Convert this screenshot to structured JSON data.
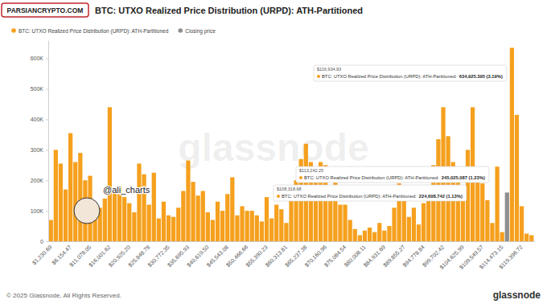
{
  "chart_data": {
    "type": "bar",
    "title": "BTC: UTXO Realized Price Distribution (URPD): ATH-Partitioned",
    "categories": [
      "$1,230.69",
      null,
      null,
      null,
      "$6,154.47",
      null,
      null,
      null,
      "$11,078.05",
      null,
      null,
      null,
      "$16,001.62",
      null,
      null,
      null,
      "$20,925.20",
      null,
      null,
      null,
      "$25,848.78",
      null,
      null,
      null,
      "$30,772.35",
      null,
      null,
      null,
      "$35,695.93",
      null,
      null,
      null,
      "$40,619.50",
      null,
      null,
      null,
      "$45,543.08",
      null,
      null,
      null,
      "$50,466.66",
      null,
      null,
      null,
      "$55,390.23",
      null,
      null,
      null,
      "$60,313.81",
      null,
      null,
      null,
      "$65,237.38",
      null,
      null,
      null,
      "$70,160.96",
      null,
      null,
      null,
      "$75,084.54",
      null,
      null,
      null,
      "$80,008.11",
      null,
      null,
      null,
      "$84,931.69",
      null,
      null,
      null,
      "$89,855.27",
      null,
      null,
      null,
      "$94,778.84",
      null,
      null,
      null,
      "$99,702.42",
      null,
      null,
      null,
      "$104,625.99",
      null,
      null,
      null,
      "$109,549.57",
      null,
      null,
      null,
      "$114,473.15",
      null,
      null,
      null,
      "$119,396.72",
      null,
      null
    ],
    "series": [
      {
        "name": "BTC: UTXO Realized Price Distribution (URPD): ATH-Partitioned",
        "color": "#f5a01e",
        "values": [
          70000,
          300000,
          255000,
          170000,
          355000,
          260000,
          290000,
          200000,
          215000,
          125000,
          110000,
          140000,
          440000,
          175000,
          180000,
          145000,
          125000,
          95000,
          255000,
          220000,
          120000,
          225000,
          75000,
          130000,
          85000,
          80000,
          110000,
          165000,
          265000,
          195000,
          150000,
          165000,
          95000,
          70000,
          130000,
          100000,
          155000,
          210000,
          85000,
          115000,
          100000,
          100000,
          85000,
          65000,
          145000,
          75000,
          120000,
          105000,
          60000,
          150000,
          200000,
          270000,
          320000,
          260000,
          200000,
          260000,
          250000,
          160000,
          210000,
          120000,
          120000,
          70000,
          40000,
          20000,
          35000,
          45000,
          30000,
          60000,
          35000,
          50000,
          110000,
          190000,
          155000,
          80000,
          110000,
          55000,
          125000,
          180000,
          250000,
          335000,
          440000,
          345000,
          260000,
          215000,
          150000,
          300000,
          440000,
          224608.742,
          190000,
          135000,
          60000,
          245025.087,
          30000,
          null,
          634925.395,
          415000,
          115000,
          25000,
          20000
        ]
      },
      {
        "name": "Closing price",
        "color": "#8f8f8f",
        "values": [
          null,
          null,
          null,
          null,
          null,
          null,
          null,
          null,
          null,
          null,
          null,
          null,
          null,
          null,
          null,
          null,
          null,
          null,
          null,
          null,
          null,
          null,
          null,
          null,
          null,
          null,
          null,
          null,
          null,
          null,
          null,
          null,
          null,
          null,
          null,
          null,
          null,
          null,
          null,
          null,
          null,
          null,
          null,
          null,
          null,
          null,
          null,
          null,
          null,
          null,
          null,
          null,
          null,
          null,
          null,
          null,
          null,
          null,
          null,
          null,
          null,
          null,
          null,
          null,
          null,
          null,
          null,
          null,
          null,
          null,
          null,
          null,
          null,
          null,
          null,
          null,
          null,
          null,
          null,
          null,
          null,
          null,
          null,
          null,
          null,
          null,
          null,
          null,
          null,
          null,
          null,
          null,
          null,
          160000,
          null,
          null,
          null,
          null,
          null
        ]
      }
    ],
    "ylim": [
      0,
      660000
    ],
    "yticks": [
      0,
      {
        "value": 100000,
        "label": "100K"
      },
      {
        "value": 200000,
        "label": "200K"
      },
      {
        "value": 300000,
        "label": "300K"
      },
      {
        "value": 400000,
        "label": "400K"
      },
      {
        "value": 500000,
        "label": "500K"
      },
      {
        "value": 600000,
        "label": "600K"
      }
    ],
    "grid": false,
    "legend": "top-left",
    "annotations": [
      {
        "price_label": "$116,934.93",
        "series_label": "BTC: UTXO Realized Price Distribution (URPD): ATH-Partitioned:",
        "value_label": "634,925.395 (3.19%)"
      },
      {
        "price_label": "$113,242.25",
        "series_label": "BTC: UTXO Realized Price Distribution (URPD): ATH-Partitioned:",
        "value_label": "245,025.087 (1.23%)"
      },
      {
        "price_label": "$108,318.68",
        "series_label": "BTC: UTXO Realized Price Distribution (URPD): ATH-Partitioned:",
        "value_label": "224,608.742 (1.13%)"
      }
    ],
    "watermark": "glassnode",
    "footer": "© 2025 Glassnode. All Rights Reserved.",
    "logo": "glassnode",
    "badge": "PARSIANCRYPTO.COM",
    "handle": "@ali_charts"
  }
}
